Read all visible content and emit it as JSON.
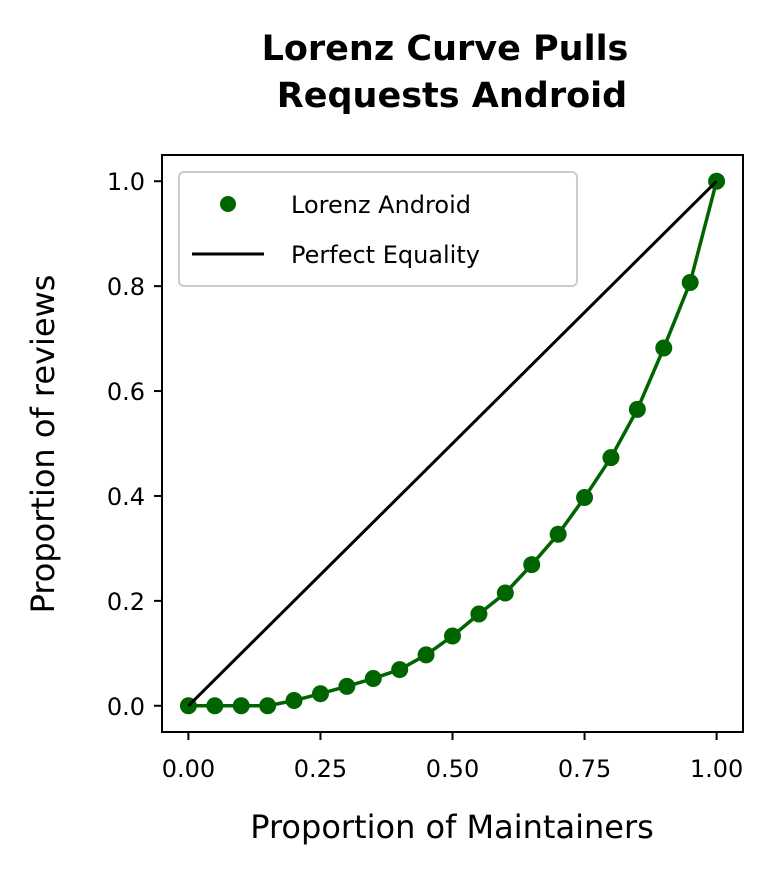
{
  "chart_data": {
    "type": "line",
    "title_lines": [
      "Lorenz Curve Pulls",
      "Requests Android"
    ],
    "xlabel": "Proportion of Maintainers",
    "ylabel": "Proportion of reviews",
    "xlim": [
      -0.05,
      1.05
    ],
    "ylim": [
      -0.05,
      1.05
    ],
    "xticks": [
      0.0,
      0.25,
      0.5,
      0.75,
      1.0
    ],
    "xtick_labels": [
      "0.00",
      "0.25",
      "0.50",
      "0.75",
      "1.00"
    ],
    "yticks": [
      0.0,
      0.2,
      0.4,
      0.6,
      0.8,
      1.0
    ],
    "ytick_labels": [
      "0.0",
      "0.2",
      "0.4",
      "0.6",
      "0.8",
      "1.0"
    ],
    "grid": false,
    "legend_position": "top-left",
    "series": [
      {
        "name": "Lorenz Android",
        "color": "#006400",
        "marker": "circle",
        "x": [
          0.0,
          0.05,
          0.1,
          0.15,
          0.2,
          0.25,
          0.3,
          0.35,
          0.4,
          0.45,
          0.5,
          0.55,
          0.6,
          0.65,
          0.7,
          0.75,
          0.8,
          0.85,
          0.9,
          0.95,
          1.0
        ],
        "y": [
          0.0,
          0.0,
          0.0,
          0.0,
          0.01,
          0.023,
          0.037,
          0.052,
          0.069,
          0.097,
          0.133,
          0.175,
          0.215,
          0.269,
          0.327,
          0.397,
          0.473,
          0.565,
          0.682,
          0.807,
          1.0
        ]
      },
      {
        "name": "Perfect Equality",
        "color": "#000000",
        "marker": "none",
        "x": [
          0.0,
          1.0
        ],
        "y": [
          0.0,
          1.0
        ]
      }
    ]
  }
}
